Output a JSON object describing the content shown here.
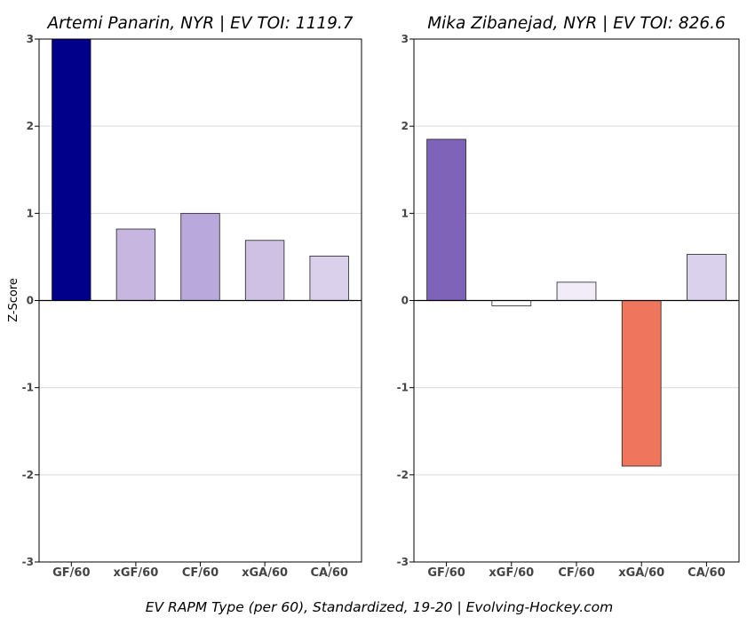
{
  "figure": {
    "caption": "EV RAPM Type (per 60), Standardized, 19-20    |    Evolving-Hockey.com",
    "ylabel": "Z-Score"
  },
  "chart_data": [
    {
      "type": "bar",
      "title": "Artemi Panarin, NYR  |  EV TOI: 1119.7",
      "ylabel": "Z-Score",
      "xlabel": "",
      "categories": [
        "GF/60",
        "xGF/60",
        "CF/60",
        "xGA/60",
        "CA/60"
      ],
      "values": [
        3.0,
        0.82,
        1.0,
        0.69,
        0.51
      ],
      "bar_colors": [
        "#00008b",
        "#c6b6e0",
        "#b9a8dc",
        "#cfc1e4",
        "#dad0ec"
      ],
      "ylim": [
        -3,
        3
      ],
      "yticks": [
        -3,
        -2,
        -1,
        0,
        1,
        2,
        3
      ],
      "grid": true
    },
    {
      "type": "bar",
      "title": "Mika Zibanejad, NYR  |  EV TOI: 826.6",
      "ylabel": "",
      "xlabel": "",
      "categories": [
        "GF/60",
        "xGF/60",
        "CF/60",
        "xGA/60",
        "CA/60"
      ],
      "values": [
        1.85,
        -0.06,
        0.21,
        -1.9,
        0.53
      ],
      "bar_colors": [
        "#7f63b9",
        "#ffffff",
        "#f1ecf8",
        "#ef765c",
        "#dad1ec"
      ],
      "ylim": [
        -3,
        3
      ],
      "yticks": [
        -3,
        -2,
        -1,
        0,
        1,
        2,
        3
      ],
      "grid": true
    }
  ]
}
